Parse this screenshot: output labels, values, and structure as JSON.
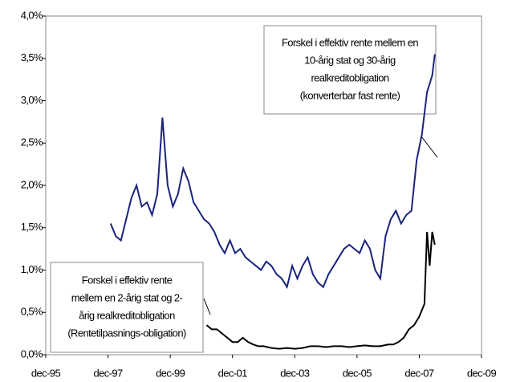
{
  "chart_data": {
    "type": "line",
    "xlim": [
      "1995-12",
      "2009-12"
    ],
    "xticks": [
      {
        "value": "1995-12",
        "label": "dec-95"
      },
      {
        "value": "1997-12",
        "label": "dec-97"
      },
      {
        "value": "1999-12",
        "label": "dec-99"
      },
      {
        "value": "2001-12",
        "label": "dec-01"
      },
      {
        "value": "2003-12",
        "label": "dec-03"
      },
      {
        "value": "2005-12",
        "label": "dec-05"
      },
      {
        "value": "2007-12",
        "label": "dec-07"
      },
      {
        "value": "2009-12",
        "label": "dec-09"
      }
    ],
    "ylim": [
      0,
      4
    ],
    "yticks": [
      {
        "value": 0,
        "label": "0,0%"
      },
      {
        "value": 0.5,
        "label": "0,5%"
      },
      {
        "value": 1,
        "label": "1,0%"
      },
      {
        "value": 1.5,
        "label": "1,5%"
      },
      {
        "value": 2,
        "label": "2,0%"
      },
      {
        "value": 2.5,
        "label": "2,5%"
      },
      {
        "value": 3,
        "label": "3,0%"
      },
      {
        "value": 3.5,
        "label": "3,5%"
      },
      {
        "value": 4,
        "label": "4,0%"
      }
    ],
    "series": [
      {
        "color": "#1a237e",
        "x": [
          "1998-01",
          "1998-03",
          "1998-05",
          "1998-07",
          "1998-09",
          "1998-11",
          "1999-01",
          "1999-03",
          "1999-05",
          "1999-07",
          "1999-09",
          "1999-11",
          "2000-01",
          "2000-03",
          "2000-05",
          "2000-07",
          "2000-09",
          "2000-11",
          "2001-01",
          "2001-03",
          "2001-05",
          "2001-07",
          "2001-09",
          "2001-11",
          "2002-01",
          "2002-03",
          "2002-05",
          "2002-07",
          "2002-09",
          "2002-11",
          "2003-01",
          "2003-03",
          "2003-05",
          "2003-07",
          "2003-09",
          "2003-11",
          "2004-01",
          "2004-03",
          "2004-05",
          "2004-07",
          "2004-09",
          "2004-11",
          "2005-01",
          "2005-03",
          "2005-05",
          "2005-07",
          "2005-09",
          "2005-11",
          "2006-01",
          "2006-03",
          "2006-05",
          "2006-07",
          "2006-09",
          "2006-11",
          "2007-01",
          "2007-03",
          "2007-05",
          "2007-07",
          "2007-09",
          "2007-11",
          "2008-01",
          "2008-03",
          "2008-05",
          "2008-06"
        ],
        "values": [
          1.55,
          1.4,
          1.35,
          1.6,
          1.85,
          2.0,
          1.75,
          1.8,
          1.65,
          1.9,
          2.8,
          2.0,
          1.75,
          1.9,
          2.2,
          2.05,
          1.8,
          1.7,
          1.6,
          1.55,
          1.45,
          1.3,
          1.2,
          1.35,
          1.2,
          1.25,
          1.15,
          1.1,
          1.05,
          1.0,
          1.1,
          1.05,
          0.95,
          0.9,
          0.8,
          1.05,
          0.9,
          1.05,
          1.15,
          0.95,
          0.85,
          0.8,
          0.95,
          1.05,
          1.15,
          1.25,
          1.3,
          1.25,
          1.2,
          1.35,
          1.25,
          1.0,
          0.9,
          1.4,
          1.6,
          1.7,
          1.55,
          1.65,
          1.7,
          2.3,
          2.6,
          3.1,
          3.3,
          3.55
        ]
      },
      {
        "color": "#000000",
        "x": [
          "2001-02",
          "2001-04",
          "2001-06",
          "2001-08",
          "2001-10",
          "2001-12",
          "2002-02",
          "2002-04",
          "2002-06",
          "2002-08",
          "2002-10",
          "2002-12",
          "2003-03",
          "2003-06",
          "2003-09",
          "2003-12",
          "2004-03",
          "2004-06",
          "2004-09",
          "2004-12",
          "2005-03",
          "2005-06",
          "2005-09",
          "2005-12",
          "2006-03",
          "2006-06",
          "2006-09",
          "2006-12",
          "2007-02",
          "2007-04",
          "2007-06",
          "2007-08",
          "2007-10",
          "2007-12",
          "2008-02",
          "2008-03",
          "2008-04",
          "2008-05",
          "2008-06"
        ],
        "values": [
          0.35,
          0.3,
          0.3,
          0.25,
          0.2,
          0.15,
          0.15,
          0.2,
          0.15,
          0.12,
          0.1,
          0.1,
          0.08,
          0.07,
          0.08,
          0.07,
          0.08,
          0.1,
          0.1,
          0.09,
          0.1,
          0.1,
          0.09,
          0.1,
          0.11,
          0.1,
          0.1,
          0.12,
          0.12,
          0.15,
          0.2,
          0.3,
          0.35,
          0.45,
          0.6,
          1.45,
          1.05,
          1.45,
          1.3
        ]
      }
    ],
    "annotations": [
      {
        "lines": [
          "Forskel i effektiv rente mellem en",
          "10-årig stat og 30-årig",
          "realkreditobligation",
          "(konverterbar fast rente)"
        ]
      },
      {
        "lines": [
          "Forskel i effektiv rente",
          "mellem en 2-årig stat og 2-",
          "årig realkreditobligation",
          "(Rentetilpasnings-obligation)"
        ]
      }
    ]
  }
}
